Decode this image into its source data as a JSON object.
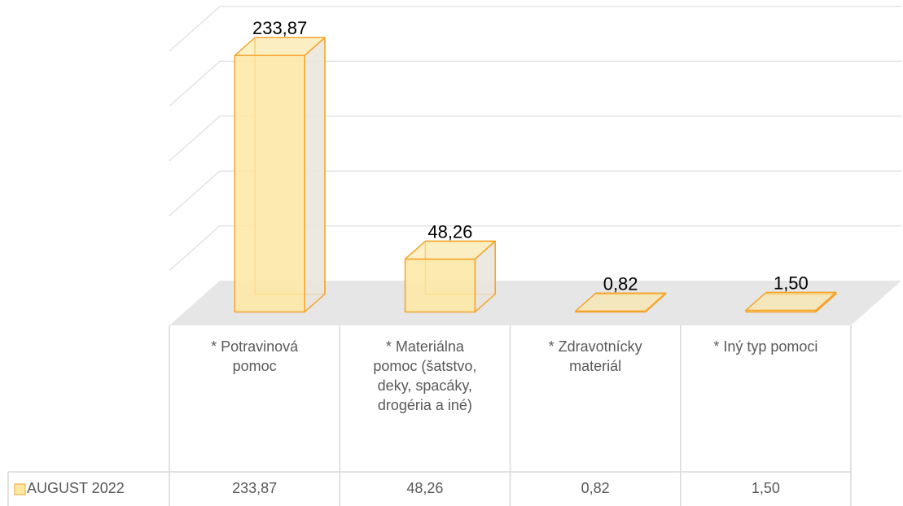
{
  "chart_data": {
    "type": "bar3d",
    "categories": [
      "* Potravinová pomoc",
      "* Materiálna pomoc (šatstvo, deky, spacáky, drogéria a iné)",
      "* Zdravotnícky materiál",
      "* Iný typ pomoci"
    ],
    "series": [
      {
        "name": "AUGUST 2022",
        "color": "#f5a42a",
        "fill": "#fde7a3",
        "values": [
          233.87,
          48.26,
          0.82,
          1.5
        ],
        "value_labels": [
          "233,87",
          "48,26",
          "0,82",
          "1,50"
        ]
      }
    ],
    "ylim": [
      0,
      250
    ],
    "yticks": [
      0,
      50,
      100,
      150,
      200,
      250
    ],
    "grid": true,
    "data_table": true
  }
}
